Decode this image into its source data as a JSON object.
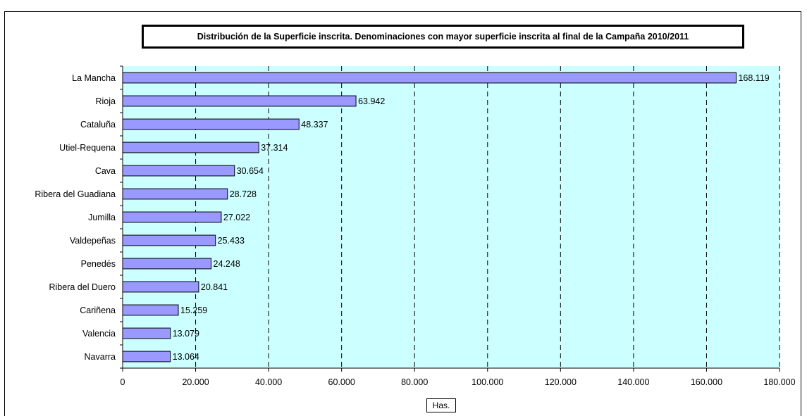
{
  "chart_data": {
    "type": "bar",
    "orientation": "horizontal",
    "title": "Distribución de la Superficie inscrita. Denominaciones con mayor superficie inscrita al final de la Campaña 2010/2011",
    "xlabel": "Has.",
    "ylabel": "",
    "categories": [
      "La Mancha",
      "Rioja",
      "Cataluña",
      "Utiel-Requena",
      "Cava",
      "Ribera del Guadiana",
      "Jumilla",
      "Valdepeñas",
      "Penedés",
      "Ribera del Duero",
      "Cariñena",
      "Valencia",
      "Navarra"
    ],
    "values": [
      168119,
      63942,
      48337,
      37314,
      30654,
      28728,
      27022,
      25433,
      24248,
      20841,
      15259,
      13079,
      13064
    ],
    "value_labels": [
      "168.119",
      "63.942",
      "48.337",
      "37.314",
      "30.654",
      "28.728",
      "27.022",
      "25.433",
      "24.248",
      "20.841",
      "15.259",
      "13.079",
      "13.064"
    ],
    "xlim": [
      0,
      180000
    ],
    "x_ticks": [
      0,
      20000,
      40000,
      60000,
      80000,
      100000,
      120000,
      140000,
      160000,
      180000
    ],
    "x_tick_labels": [
      "0",
      "20.000",
      "40.000",
      "60.000",
      "80.000",
      "100.000",
      "120.000",
      "140.000",
      "160.000",
      "180.000"
    ],
    "grid": "vertical dashed",
    "legend": "none",
    "colors": {
      "bar": "#9999ff",
      "plot_background": "#ccffff",
      "bar_border": "#000000"
    }
  }
}
